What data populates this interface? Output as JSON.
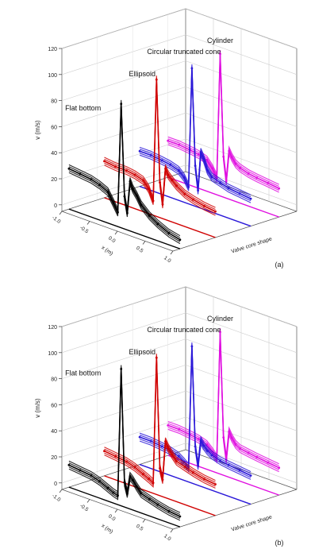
{
  "chart_data": [
    {
      "type": "line",
      "panel_label": "(a)",
      "ylabel": "v (m/s)",
      "xlabel": "x (m)",
      "zlabel": "Valve core shape",
      "ylim": [
        -5,
        120
      ],
      "xlim": [
        -1.0,
        1.0
      ],
      "y_ticks": [
        0,
        20,
        40,
        60,
        80,
        100,
        120
      ],
      "x_ticks": [
        "-1.0",
        "-0.5",
        "0.0",
        "0.5",
        "1.0"
      ],
      "grid": true,
      "series": [
        {
          "name": "Flat bottom",
          "color": "#000000",
          "x": [
            -1.0,
            -0.8,
            -0.6,
            -0.45,
            -0.3,
            -0.2,
            -0.12,
            -0.06,
            0.0,
            0.05,
            0.1,
            0.15,
            0.22,
            0.3,
            0.45,
            0.6,
            0.8,
            1.0
          ],
          "y": [
            26,
            25,
            24,
            22,
            19,
            12,
            6,
            90,
            20,
            8,
            33,
            28,
            24,
            18,
            12,
            8,
            4,
            2
          ]
        },
        {
          "name": "Ellipsoid",
          "color": "#d00000",
          "x": [
            -1.0,
            -0.8,
            -0.6,
            -0.45,
            -0.3,
            -0.2,
            -0.12,
            -0.06,
            0.0,
            0.05,
            0.1,
            0.15,
            0.22,
            0.3,
            0.45,
            0.6,
            0.8,
            1.0
          ],
          "y": [
            23,
            22,
            22,
            21,
            19,
            14,
            6,
            100,
            22,
            6,
            34,
            30,
            27,
            24,
            20,
            18,
            16,
            15
          ]
        },
        {
          "name": "Circular truncated cone",
          "color": "#2a18d8",
          "x": [
            -1.0,
            -0.8,
            -0.6,
            -0.45,
            -0.3,
            -0.2,
            -0.12,
            -0.06,
            0.0,
            0.05,
            0.1,
            0.15,
            0.22,
            0.3,
            0.45,
            0.6,
            0.8,
            1.0
          ],
          "y": [
            22,
            22,
            21,
            20,
            18,
            14,
            8,
            100,
            26,
            8,
            38,
            34,
            26,
            22,
            20,
            18,
            17,
            16
          ]
        },
        {
          "name": "Cylinder",
          "color": "#e010e0",
          "x": [
            -1.0,
            -0.8,
            -0.6,
            -0.45,
            -0.3,
            -0.2,
            -0.12,
            -0.06,
            0.0,
            0.05,
            0.1,
            0.15,
            0.22,
            0.3,
            0.45,
            0.6,
            0.8,
            1.0
          ],
          "y": [
            23,
            23,
            22,
            21,
            19,
            14,
            8,
            104,
            26,
            8,
            32,
            28,
            24,
            22,
            20,
            19,
            18,
            17
          ]
        }
      ]
    },
    {
      "type": "line",
      "panel_label": "(b)",
      "ylabel": "v (m/s)",
      "xlabel": "x (m)",
      "zlabel": "Valve core shape",
      "ylim": [
        -5,
        120
      ],
      "xlim": [
        -1.0,
        1.0
      ],
      "y_ticks": [
        0,
        20,
        40,
        60,
        80,
        100,
        120
      ],
      "x_ticks": [
        "-1.0",
        "-0.5",
        "0.0",
        "0.5",
        "1.0"
      ],
      "grid": true,
      "series": [
        {
          "name": "Flat bottom",
          "color": "#000000",
          "x": [
            -1.0,
            -0.8,
            -0.6,
            -0.45,
            -0.3,
            -0.2,
            -0.12,
            -0.06,
            0.0,
            0.05,
            0.1,
            0.15,
            0.22,
            0.3,
            0.45,
            0.6,
            0.8,
            1.0
          ],
          "y": [
            12,
            11,
            10,
            8,
            5,
            3,
            2,
            100,
            14,
            6,
            20,
            18,
            14,
            10,
            8,
            6,
            4,
            3
          ]
        },
        {
          "name": "Ellipsoid",
          "color": "#d00000",
          "x": [
            -1.0,
            -0.8,
            -0.6,
            -0.45,
            -0.3,
            -0.2,
            -0.12,
            -0.06,
            0.0,
            0.05,
            0.1,
            0.15,
            0.22,
            0.3,
            0.45,
            0.6,
            0.8,
            1.0
          ],
          "y": [
            14,
            13,
            12,
            10,
            7,
            5,
            3,
            100,
            16,
            8,
            38,
            34,
            30,
            26,
            24,
            22,
            20,
            19
          ]
        },
        {
          "name": "Circular truncated cone",
          "color": "#2a18d8",
          "x": [
            -1.0,
            -0.8,
            -0.6,
            -0.45,
            -0.3,
            -0.2,
            -0.12,
            -0.06,
            0.0,
            0.05,
            0.1,
            0.15,
            0.22,
            0.3,
            0.45,
            0.6,
            0.8,
            1.0
          ],
          "y": [
            16,
            16,
            15,
            14,
            12,
            9,
            6,
            100,
            24,
            10,
            30,
            27,
            24,
            22,
            20,
            19,
            18,
            17
          ]
        },
        {
          "name": "Cylinder",
          "color": "#e010e0",
          "x": [
            -1.0,
            -0.8,
            -0.6,
            -0.45,
            -0.3,
            -0.2,
            -0.12,
            -0.06,
            0.0,
            0.05,
            0.1,
            0.15,
            0.22,
            0.3,
            0.45,
            0.6,
            0.8,
            1.0
          ],
          "y": [
            18,
            18,
            17,
            16,
            14,
            10,
            6,
            104,
            24,
            8,
            30,
            26,
            22,
            20,
            19,
            18,
            17,
            16
          ]
        }
      ]
    }
  ]
}
